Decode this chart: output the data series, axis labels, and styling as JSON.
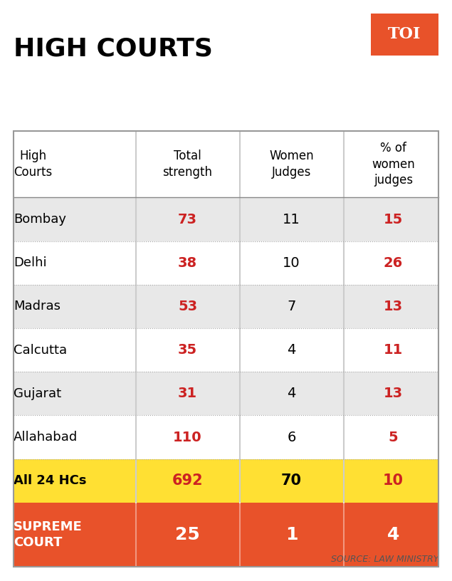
{
  "title": "HIGH COURTS",
  "col_headers": [
    "High\nCourts",
    "Total\nstrength",
    "Women\nJudges",
    "% of\nwomen\njudges"
  ],
  "rows": [
    {
      "court": "Bombay",
      "total": "73",
      "women": "11",
      "pct": "15",
      "bg": "#e8e8e8"
    },
    {
      "court": "Delhi",
      "total": "38",
      "women": "10",
      "pct": "26",
      "bg": "#ffffff"
    },
    {
      "court": "Madras",
      "total": "53",
      "women": "7",
      "pct": "13",
      "bg": "#e8e8e8"
    },
    {
      "court": "Calcutta",
      "total": "35",
      "women": "4",
      "pct": "11",
      "bg": "#ffffff"
    },
    {
      "court": "Gujarat",
      "total": "31",
      "women": "4",
      "pct": "13",
      "bg": "#e8e8e8"
    },
    {
      "court": "Allahabad",
      "total": "110",
      "women": "6",
      "pct": "5",
      "bg": "#ffffff"
    }
  ],
  "summary_row": {
    "court": "All 24 HCs",
    "total": "692",
    "women": "70",
    "pct": "10",
    "bg": "#FFE033",
    "text_color": "#000000",
    "total_color": "#cc2222",
    "pct_color": "#cc2222"
  },
  "sc_row": {
    "court": "SUPREME\nCOURT",
    "total": "25",
    "women": "1",
    "pct": "4",
    "bg": "#E8522A",
    "text_color": "#ffffff"
  },
  "source_text": "SOURCE: LAW MINISTRY",
  "toi_bg": "#E8522A",
  "toi_text": "TOI",
  "red_color": "#cc2222",
  "black_color": "#000000",
  "white_color": "#ffffff",
  "fig_bg": "#ffffff"
}
